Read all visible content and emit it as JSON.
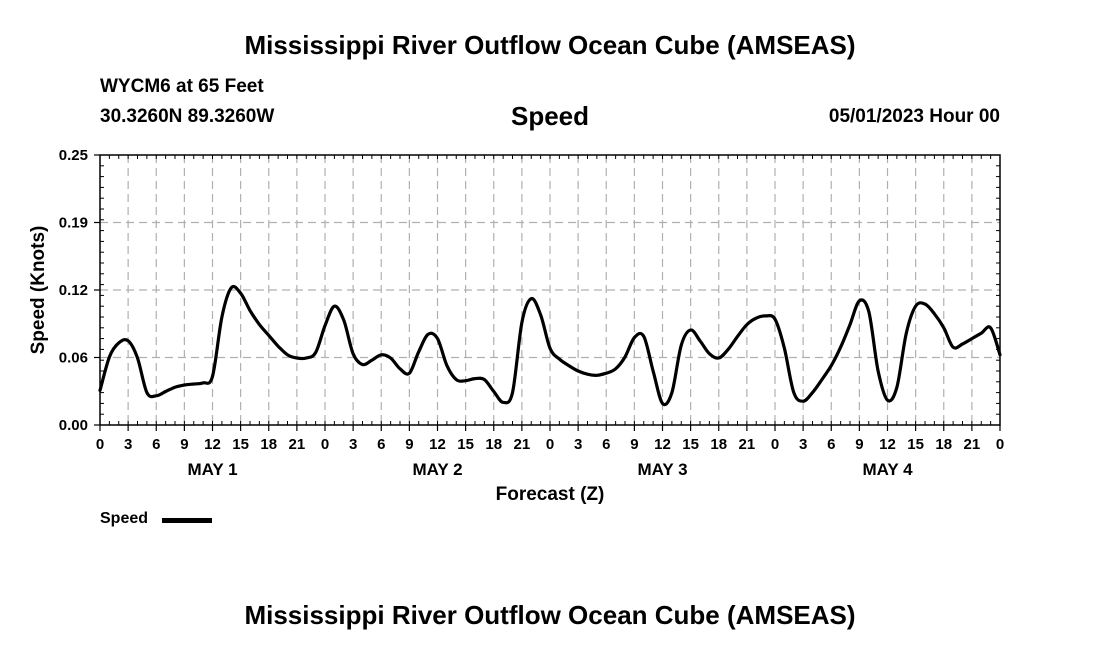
{
  "header": {
    "title_top": "Mississippi River Outflow Ocean Cube (AMSEAS)",
    "title_bottom": "Mississippi River Outflow Ocean Cube (AMSEAS)",
    "station": "WYCM6 at 65 Feet",
    "coords": "30.3260N  89.3260W",
    "datetime": "05/01/2023 Hour 00"
  },
  "legend": {
    "label": "Speed"
  },
  "chart_data": {
    "type": "line",
    "title": "Speed",
    "xlabel": "Forecast (Z)",
    "ylabel": "Speed (Knots)",
    "ylim": [
      0,
      0.25
    ],
    "yticks": [
      "0.00",
      "0.06",
      "0.12",
      "0.19",
      "0.25"
    ],
    "xlim": [
      0,
      96
    ],
    "xticks": [
      "0",
      "3",
      "6",
      "9",
      "12",
      "15",
      "18",
      "21",
      "0",
      "3",
      "6",
      "9",
      "12",
      "15",
      "18",
      "21",
      "0",
      "3",
      "6",
      "9",
      "12",
      "15",
      "18",
      "21",
      "0",
      "3",
      "6",
      "9",
      "12",
      "15",
      "18",
      "21",
      "0"
    ],
    "day_labels": [
      "MAY 1",
      "MAY 2",
      "MAY 3",
      "MAY 4"
    ],
    "grid": true,
    "series": [
      {
        "name": "Speed",
        "x": [
          0,
          1,
          2,
          3,
          4,
          5,
          6,
          7,
          8,
          9,
          10,
          11,
          12,
          13,
          14,
          15,
          16,
          17,
          18,
          19,
          20,
          21,
          22,
          23,
          24,
          25,
          26,
          27,
          28,
          29,
          30,
          31,
          32,
          33,
          34,
          35,
          36,
          37,
          38,
          39,
          40,
          41,
          42,
          43,
          44,
          45,
          46,
          47,
          48,
          49,
          50,
          51,
          52,
          53,
          54,
          55,
          56,
          57,
          58,
          59,
          60,
          61,
          62,
          63,
          64,
          65,
          66,
          67,
          68,
          69,
          70,
          71,
          72,
          73,
          74,
          75,
          76,
          77,
          78,
          79,
          80,
          81,
          82,
          83,
          84,
          85,
          86,
          87,
          88,
          89,
          90,
          91,
          92,
          93,
          94,
          95,
          96
        ],
        "values": [
          0.032,
          0.063,
          0.076,
          0.078,
          0.062,
          0.03,
          0.027,
          0.031,
          0.035,
          0.037,
          0.038,
          0.039,
          0.045,
          0.1,
          0.127,
          0.122,
          0.106,
          0.093,
          0.083,
          0.073,
          0.065,
          0.062,
          0.062,
          0.067,
          0.092,
          0.11,
          0.097,
          0.066,
          0.056,
          0.06,
          0.065,
          0.062,
          0.052,
          0.048,
          0.068,
          0.084,
          0.08,
          0.055,
          0.042,
          0.041,
          0.043,
          0.042,
          0.031,
          0.021,
          0.03,
          0.095,
          0.117,
          0.102,
          0.071,
          0.061,
          0.055,
          0.05,
          0.047,
          0.046,
          0.048,
          0.052,
          0.063,
          0.081,
          0.082,
          0.05,
          0.02,
          0.03,
          0.074,
          0.088,
          0.078,
          0.066,
          0.062,
          0.07,
          0.082,
          0.093,
          0.099,
          0.101,
          0.098,
          0.071,
          0.03,
          0.022,
          0.03,
          0.042,
          0.055,
          0.072,
          0.093,
          0.115,
          0.105,
          0.05,
          0.023,
          0.035,
          0.085,
          0.11,
          0.112,
          0.103,
          0.09,
          0.072,
          0.075,
          0.08,
          0.085,
          0.09,
          0.065
        ]
      }
    ]
  }
}
